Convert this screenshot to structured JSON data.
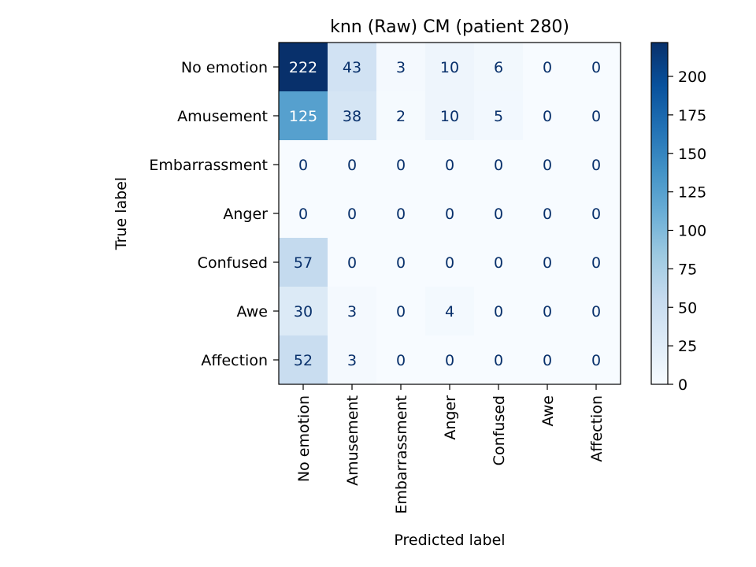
{
  "chart_data": {
    "type": "heatmap",
    "title": "knn (Raw) CM (patient 280)",
    "xlabel": "Predicted label",
    "ylabel": "True label",
    "x_categories": [
      "No emotion",
      "Amusement",
      "Embarrassment",
      "Anger",
      "Confused",
      "Awe",
      "Affection"
    ],
    "y_categories": [
      "No emotion",
      "Amusement",
      "Embarrassment",
      "Anger",
      "Confused",
      "Awe",
      "Affection"
    ],
    "values": [
      [
        222,
        43,
        3,
        10,
        6,
        0,
        0
      ],
      [
        125,
        38,
        2,
        10,
        5,
        0,
        0
      ],
      [
        0,
        0,
        0,
        0,
        0,
        0,
        0
      ],
      [
        0,
        0,
        0,
        0,
        0,
        0,
        0
      ],
      [
        57,
        0,
        0,
        0,
        0,
        0,
        0
      ],
      [
        30,
        3,
        0,
        4,
        0,
        0,
        0
      ],
      [
        52,
        3,
        0,
        0,
        0,
        0,
        0
      ]
    ],
    "colormap": "Blues",
    "vmin": 0,
    "vmax": 222,
    "colorbar_ticks": [
      0,
      25,
      50,
      75,
      100,
      125,
      150,
      175,
      200
    ],
    "colorbar_tick_labels": [
      "0",
      "25",
      "50",
      "75",
      "100",
      "125",
      "150",
      "175",
      "200"
    ],
    "grid": false,
    "text_dark_color": "#08306b",
    "text_light_color": "#ffffff"
  }
}
